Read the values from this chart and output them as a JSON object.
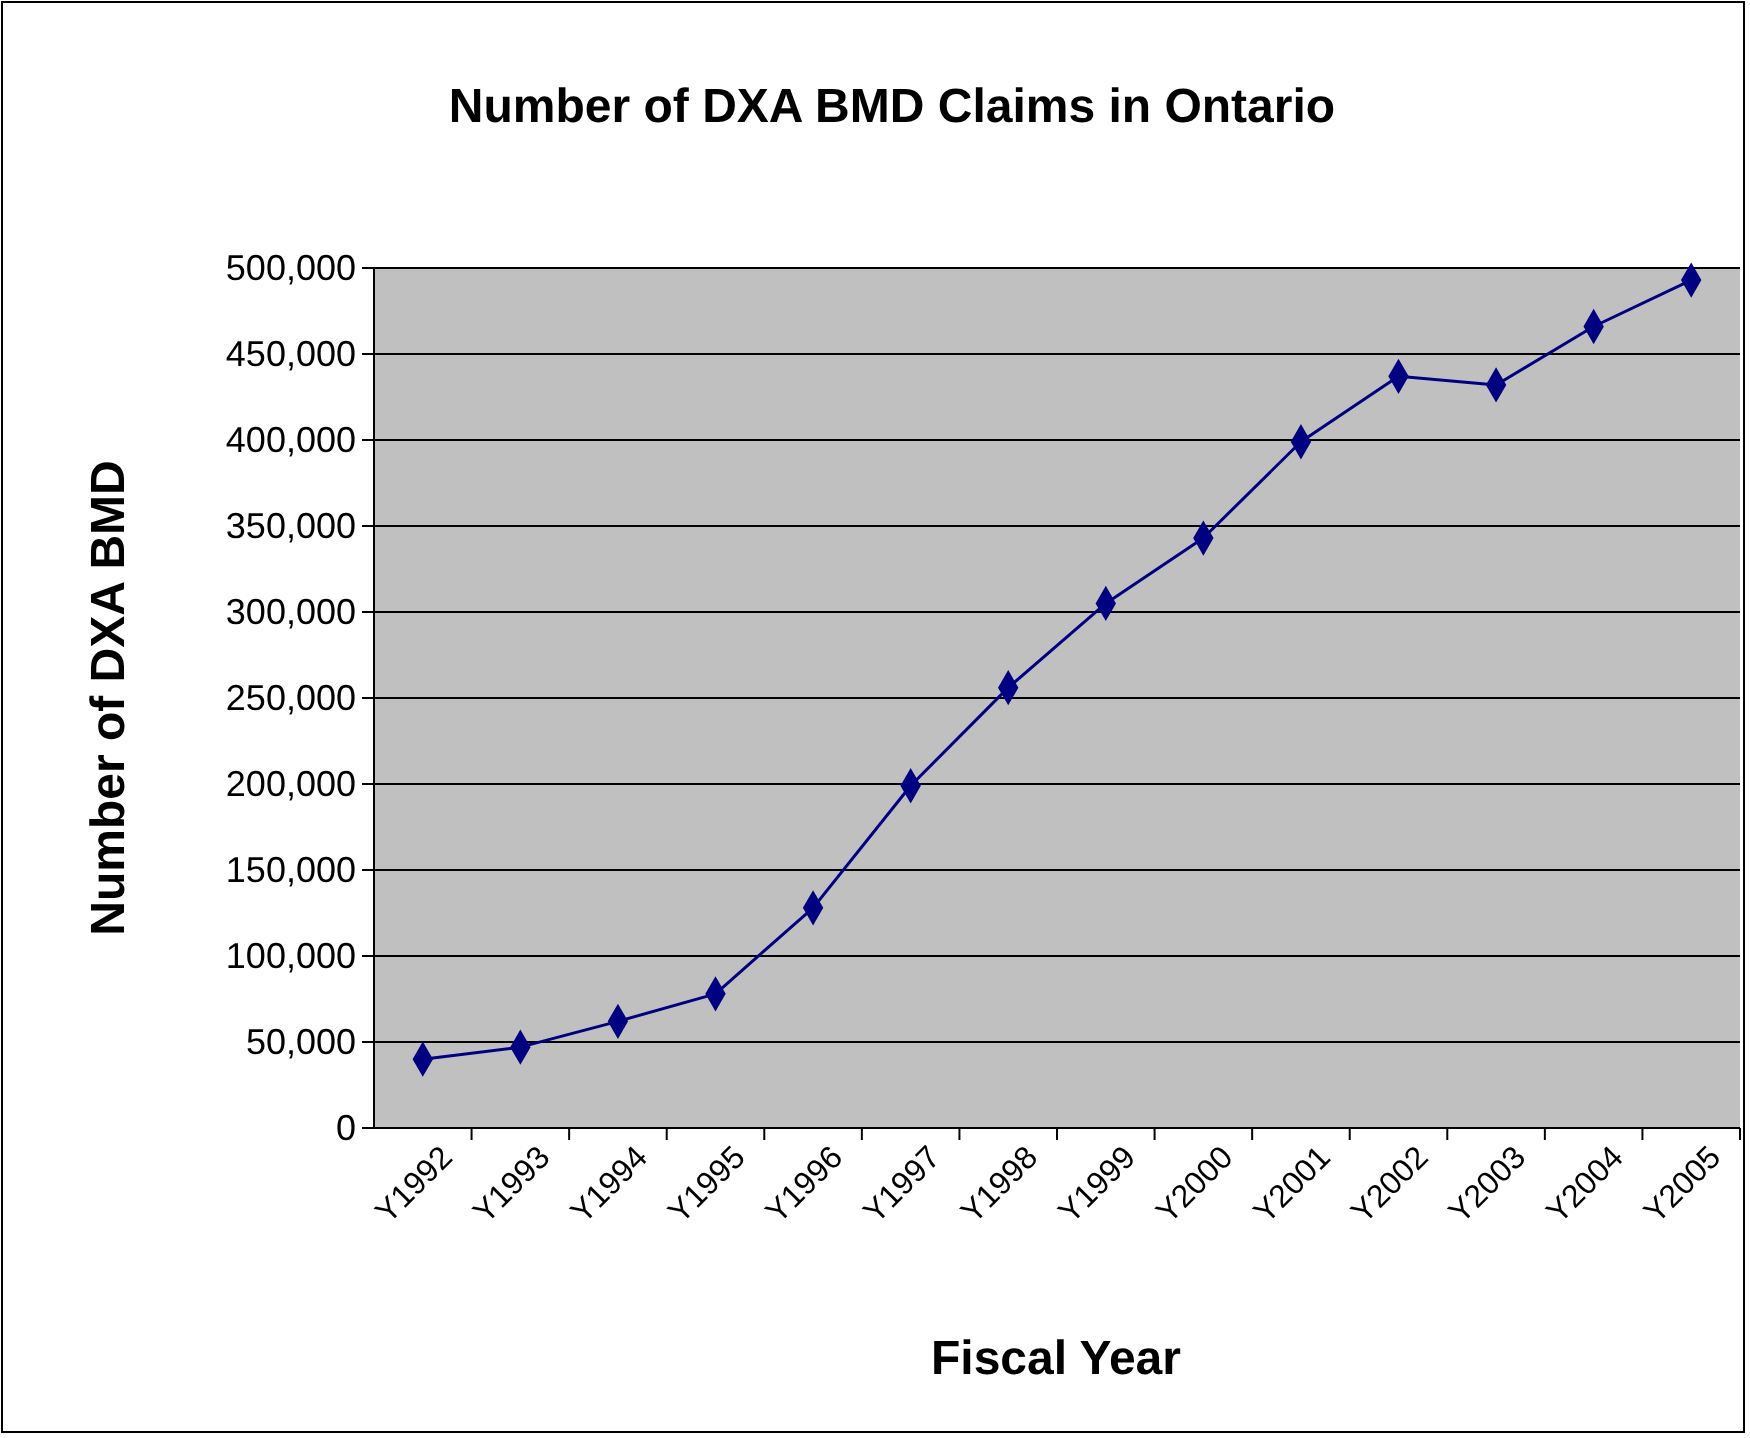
{
  "chart_data": {
    "type": "line",
    "title": "Number of DXA BMD Claims in Ontario",
    "xlabel": "Fiscal Year",
    "ylabel": "Number of DXA BMD",
    "categories": [
      "Y1992",
      "Y1993",
      "Y1994",
      "Y1995",
      "Y1996",
      "Y1997",
      "Y1998",
      "Y1999",
      "Y2000",
      "Y2001",
      "Y2002",
      "Y2003",
      "Y2004",
      "Y2005"
    ],
    "series": [
      {
        "color": "#000080",
        "values": [
          40000,
          47000,
          62000,
          78000,
          128000,
          199000,
          256000,
          305000,
          343000,
          399000,
          437000,
          432000,
          466000,
          493000
        ]
      }
    ],
    "ylim": [
      0,
      500000
    ],
    "yticks": [
      {
        "value": 0,
        "label": "0"
      },
      {
        "value": 50000,
        "label": "50,000"
      },
      {
        "value": 100000,
        "label": "100,000"
      },
      {
        "value": 150000,
        "label": "150,000"
      },
      {
        "value": 200000,
        "label": "200,000"
      },
      {
        "value": 250000,
        "label": "250,000"
      },
      {
        "value": 300000,
        "label": "300,000"
      },
      {
        "value": 350000,
        "label": "350,000"
      },
      {
        "value": 400000,
        "label": "400,000"
      },
      {
        "value": 450000,
        "label": "450,000"
      },
      {
        "value": 500000,
        "label": "500,000"
      }
    ],
    "grid": "y",
    "marker": "diamond",
    "line_style": "solid"
  }
}
